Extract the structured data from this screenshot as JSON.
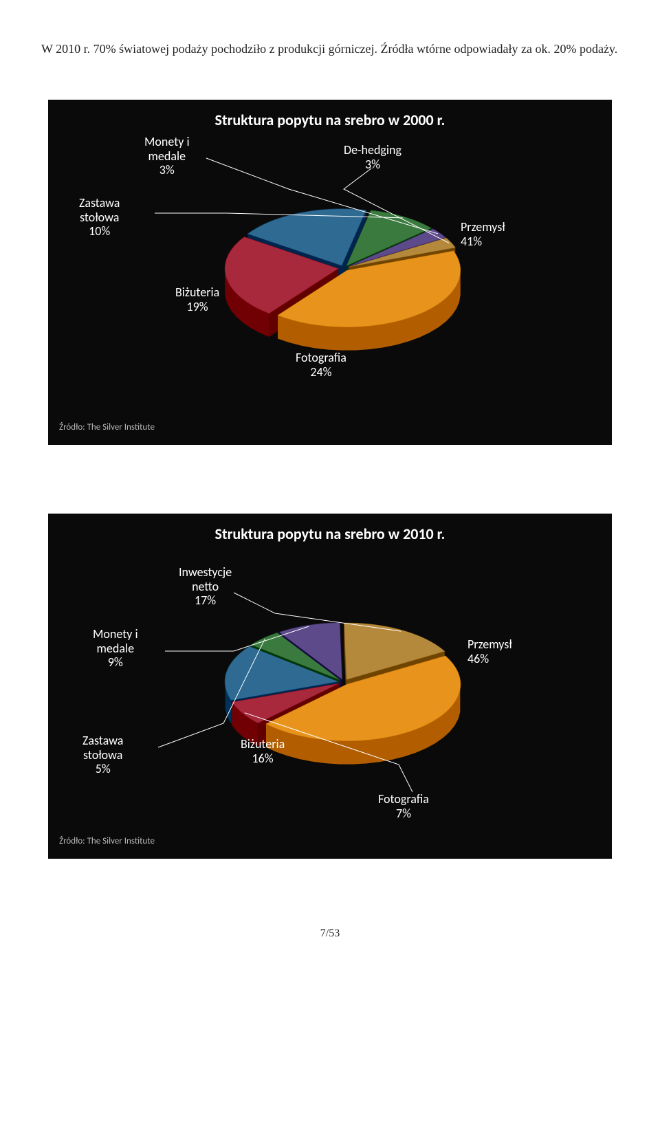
{
  "intro_text": "W 2010 r. 70% światowej podaży pochodziło z produkcji górniczej. Źródła wtórne odpowiadały za ok. 20% podaży.",
  "page_number": "7/53",
  "chart1": {
    "type": "pie-3d",
    "title": "Struktura popytu na srebro w 2000 r.",
    "title_fontsize": 22,
    "background_color": "#0a0a0a",
    "source_text": "Źródło: The Silver Institute",
    "slices": [
      {
        "label": "Przemysł",
        "value": 41,
        "color": "#e8941c"
      },
      {
        "label": "Fotografia",
        "value": 24,
        "color": "#a8283c"
      },
      {
        "label": "Biżuteria",
        "value": 19,
        "color": "#2f6a92"
      },
      {
        "label": "Zastawa stołowa",
        "value": 10,
        "color": "#3a7a3f"
      },
      {
        "label": "Monety i medale",
        "value": 3,
        "color": "#5d4a8a"
      },
      {
        "label": "De-hedging",
        "value": 3,
        "color": "#b5893c"
      }
    ],
    "label_color": "#ffffff",
    "label_fontsize": 18,
    "leader_color": "#ffffff",
    "tilt": 0.5,
    "depth": 34,
    "radius": 165,
    "explode": 8,
    "start_angle": -20
  },
  "chart2": {
    "type": "pie-3d",
    "title": "Struktura popytu na srebro w 2010 r.",
    "title_fontsize": 22,
    "background_color": "#0a0a0a",
    "source_text": "Źródło: The Silver Institute",
    "slices": [
      {
        "label": "Przemysł",
        "value": 46,
        "color": "#e8941c"
      },
      {
        "label": "Fotografia",
        "value": 7,
        "color": "#a8283c"
      },
      {
        "label": "Biżuteria",
        "value": 16,
        "color": "#2f6a92"
      },
      {
        "label": "Zastawa stołowa",
        "value": 5,
        "color": "#3a7a3f"
      },
      {
        "label": "Monety i medale",
        "value": 9,
        "color": "#5d4a8a"
      },
      {
        "label": "Inwestycje netto",
        "value": 17,
        "color": "#b5893c"
      }
    ],
    "label_color": "#ffffff",
    "label_fontsize": 18,
    "leader_color": "#ffffff",
    "tilt": 0.5,
    "depth": 34,
    "radius": 165,
    "explode": 8,
    "start_angle": -30
  }
}
